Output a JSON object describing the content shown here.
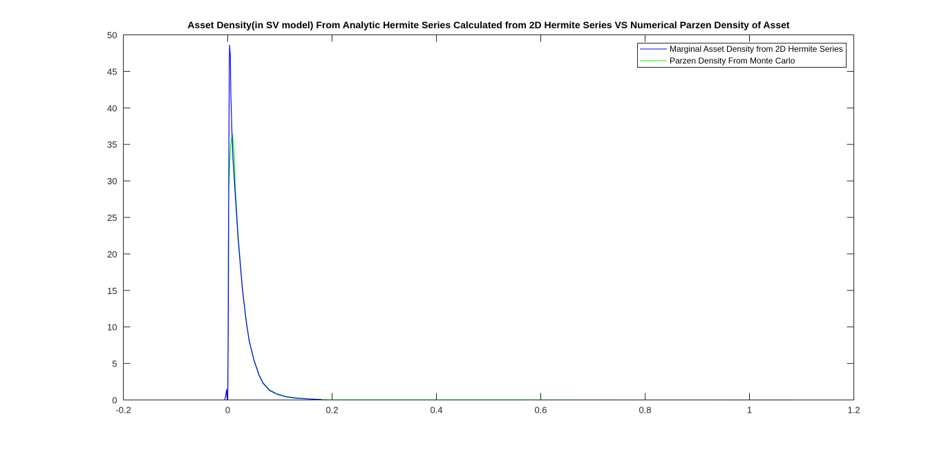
{
  "chart_data": {
    "type": "line",
    "title": "Asset Density(in SV model) From Analytic Hermite Series Calculated from 2D Hermite Series VS Numerical Parzen Density of Asset",
    "xlabel": "",
    "ylabel": "",
    "xlim": [
      -0.2,
      1.2
    ],
    "ylim": [
      0,
      50
    ],
    "xticks": [
      -0.2,
      0,
      0.2,
      0.4,
      0.6,
      0.8,
      1,
      1.2
    ],
    "xtick_labels": [
      "-0.2",
      "0",
      "0.2",
      "0.4",
      "0.6",
      "0.8",
      "1",
      "1.2"
    ],
    "yticks": [
      0,
      5,
      10,
      15,
      20,
      25,
      30,
      35,
      40,
      45,
      50
    ],
    "ytick_labels": [
      "0",
      "5",
      "10",
      "15",
      "20",
      "25",
      "30",
      "35",
      "40",
      "45",
      "50"
    ],
    "grid": false,
    "legend_position": "top-right",
    "series": [
      {
        "name": "Marginal Asset Density from 2D Hermite Series",
        "color": "#0000ff",
        "x": [
          -0.006,
          -0.004,
          -0.003,
          -0.002,
          -0.001,
          0.0,
          0.001,
          0.002,
          0.003,
          0.0036,
          0.005,
          0.006,
          0.008,
          0.01,
          0.0146,
          0.02,
          0.028,
          0.035,
          0.041,
          0.05,
          0.06,
          0.0675,
          0.08,
          0.094,
          0.11,
          0.13,
          0.16,
          0.18
        ],
        "y": [
          0,
          0.5,
          1.0,
          1.5,
          0,
          0,
          10,
          30,
          46,
          48.6,
          47,
          42,
          37,
          33,
          28,
          22,
          15.3,
          11,
          8.1,
          5.5,
          3.4,
          2.3,
          1.3,
          0.8,
          0.45,
          0.25,
          0.12,
          0.05
        ]
      },
      {
        "name": "Parzen Density From Monte Carlo",
        "color": "#00ff00",
        "x": [
          0.0,
          0.0005,
          0.001,
          0.002,
          0.004,
          0.006,
          0.008,
          0.009,
          0.012,
          0.0146,
          0.02,
          0.028,
          0.035,
          0.041,
          0.05,
          0.06,
          0.0675,
          0.08,
          0.094,
          0.11,
          0.13,
          0.16,
          0.18,
          0.2,
          1.08
        ],
        "y": [
          0,
          5,
          20,
          28,
          33,
          35,
          36,
          36.4,
          34,
          29,
          22.5,
          15.5,
          11.2,
          8.2,
          5.6,
          3.5,
          2.4,
          1.4,
          0.85,
          0.5,
          0.28,
          0.13,
          0.06,
          0.02,
          0
        ]
      }
    ]
  }
}
